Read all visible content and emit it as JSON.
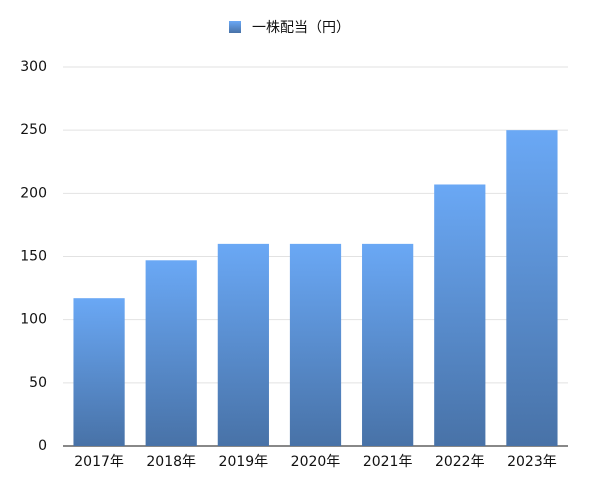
{
  "chart_data": {
    "type": "bar",
    "categories": [
      "2017年",
      "2018年",
      "2019年",
      "2020年",
      "2021年",
      "2022年",
      "2023年"
    ],
    "series": [
      {
        "name": "一株配当（円）",
        "color": "#6aa8f5",
        "values": [
          117,
          147,
          160,
          160,
          160,
          207,
          250
        ]
      }
    ],
    "ylim": [
      0,
      300
    ],
    "yticks": [
      0,
      50,
      100,
      150,
      200,
      250,
      300
    ],
    "grid": true,
    "legend": "top"
  }
}
